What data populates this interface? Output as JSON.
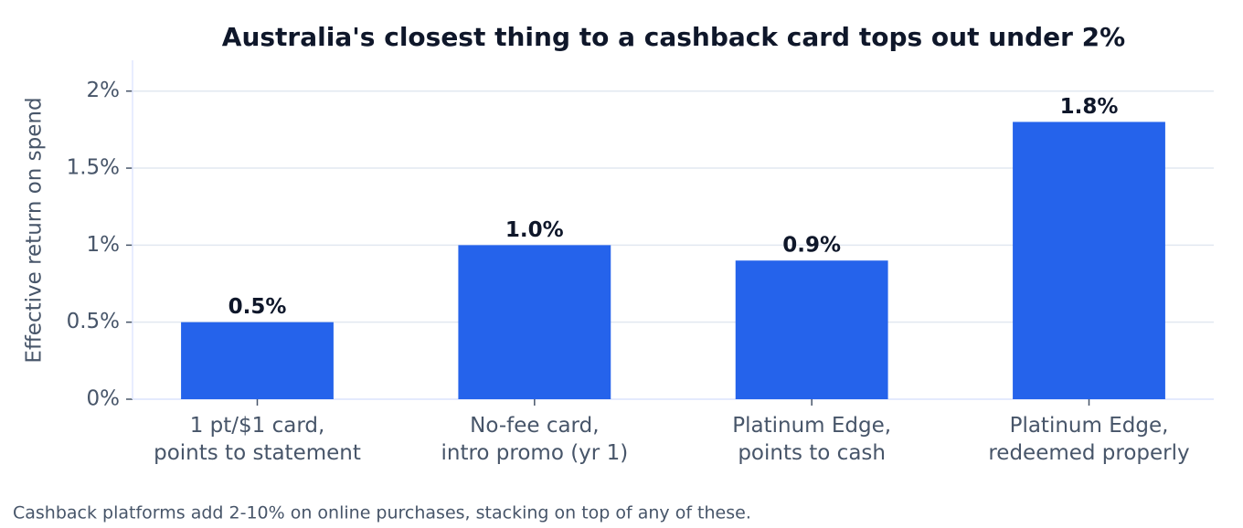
{
  "chart_data": {
    "type": "bar",
    "title": "Australia's closest thing to a cashback card tops out under 2%",
    "y_label": "Effective return on spend",
    "categories": [
      "1 pt/$1 card,\npoints to statement",
      "No-fee card,\nintro promo (yr 1)",
      "Platinum Edge,\npoints to cash",
      "Platinum Edge,\nredeemed properly"
    ],
    "values": [
      0.5,
      1.0,
      0.9,
      1.8
    ],
    "value_labels": [
      "0.5%",
      "1.0%",
      "0.9%",
      "1.8%"
    ],
    "color": "#2563eb",
    "ylim": [
      0,
      2.2
    ],
    "yticks": [
      {
        "value": 0,
        "label": "0%"
      },
      {
        "value": 0.5,
        "label": "0.5%"
      },
      {
        "value": 1,
        "label": "1%"
      },
      {
        "value": 1.5,
        "label": "1.5%"
      },
      {
        "value": 2,
        "label": "2%"
      }
    ],
    "grid": true,
    "footnote": "Cashback platforms add 2-10% on online purchases, stacking on top of any of these."
  }
}
